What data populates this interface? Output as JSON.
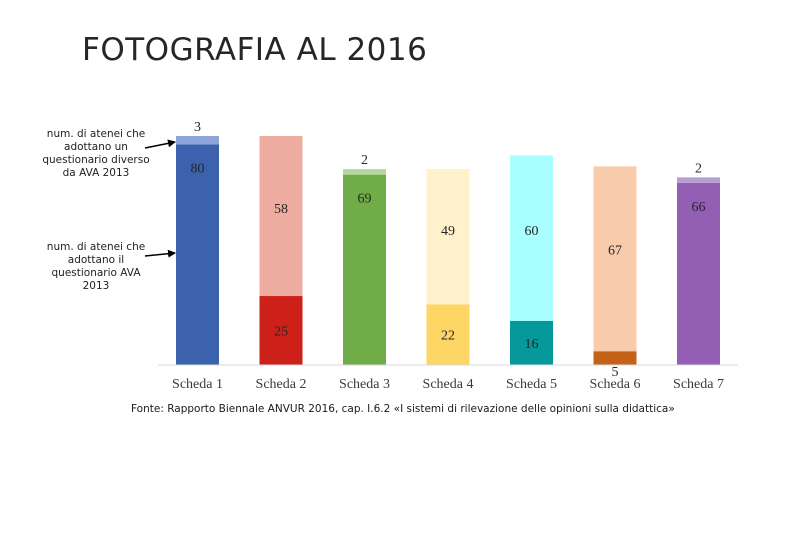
{
  "title": "FOTOGRAFIA AL 2016",
  "annotations": {
    "top": "num. di atenei che adottano un questionario diverso da AVA 2013",
    "bottom": "num. di atenei che adottano il questionario AVA 2013"
  },
  "source": "Fonte: Rapporto Biennale ANVUR 2016, cap. I.6.2 «I sistemi di rilevazione delle opinioni sulla didattica»",
  "chart_data": {
    "type": "bar",
    "stacked": true,
    "categories": [
      "Scheda 1",
      "Scheda 2",
      "Scheda 3",
      "Scheda 4",
      "Scheda 5",
      "Scheda 6",
      "Scheda 7"
    ],
    "series": [
      {
        "values": [
          80,
          25,
          69,
          22,
          16,
          5,
          66
        ],
        "colors": [
          "#3c62ae",
          "#cc2019",
          "#70ac47",
          "#fdd666",
          "#05999b",
          "#c5621a",
          "#935fb4"
        ]
      },
      {
        "values": [
          3,
          58,
          2,
          49,
          60,
          67,
          2
        ],
        "colors": [
          "#8ea5d9",
          "#eeaca0",
          "#b3d89b",
          "#fff1cc",
          "#a9feff",
          "#f8cbad",
          "#b89ed3"
        ]
      }
    ],
    "ylim": [
      0,
      83
    ],
    "grid": false,
    "legend": "none"
  }
}
